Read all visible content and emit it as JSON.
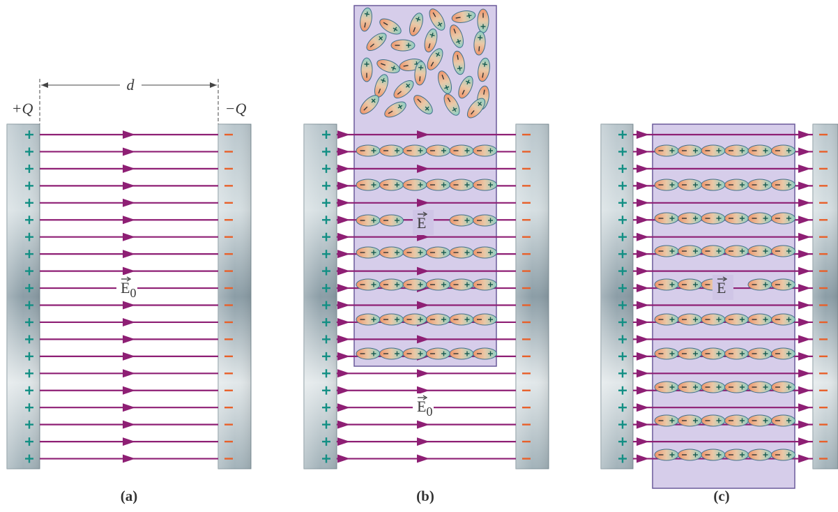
{
  "panel_a": {
    "caption": "(a)",
    "left_charge": "+Q",
    "right_charge": "−Q",
    "separation": "d",
    "field": {
      "symbol": "E",
      "subscript": "0"
    }
  },
  "panel_b": {
    "caption": "(b)",
    "field": {
      "symbol": "E",
      "subscript": "0"
    },
    "dielectric_field": {
      "symbol": "E"
    }
  },
  "panel_c": {
    "caption": "(c)",
    "dielectric_field": {
      "symbol": "E"
    }
  }
}
